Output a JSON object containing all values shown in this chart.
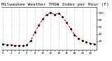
{
  "title": "Milwaukee Weather THSW Index per Hour (F) (Last 24 Hours)",
  "hours": [
    0,
    1,
    2,
    3,
    4,
    5,
    6,
    7,
    8,
    9,
    10,
    11,
    12,
    13,
    14,
    15,
    16,
    17,
    18,
    19,
    20,
    21,
    22,
    23
  ],
  "values": [
    12,
    10,
    9,
    8,
    7,
    8,
    9,
    22,
    45,
    65,
    82,
    95,
    100,
    95,
    98,
    88,
    72,
    55,
    38,
    28,
    22,
    18,
    14,
    12
  ],
  "line_color": "#ff0000",
  "marker_color": "#000000",
  "background_color": "#ffffff",
  "grid_color": "#aaaaaa",
  "title_fontsize": 4.5,
  "ylim": [
    -5,
    115
  ],
  "ytick_values": [
    20,
    40,
    60,
    80,
    100
  ],
  "ytick_labels": [
    "20",
    "40",
    "60",
    "80",
    "100"
  ],
  "xtick_labels": [
    "0",
    "",
    "2",
    "",
    "4",
    "",
    "6",
    "",
    "8",
    "",
    "10",
    "",
    "12",
    "",
    "14",
    "",
    "16",
    "",
    "18",
    "",
    "20",
    "",
    "22",
    ""
  ],
  "vgrid_positions": [
    0,
    2,
    4,
    6,
    8,
    10,
    12,
    14,
    16,
    18,
    20,
    22
  ]
}
